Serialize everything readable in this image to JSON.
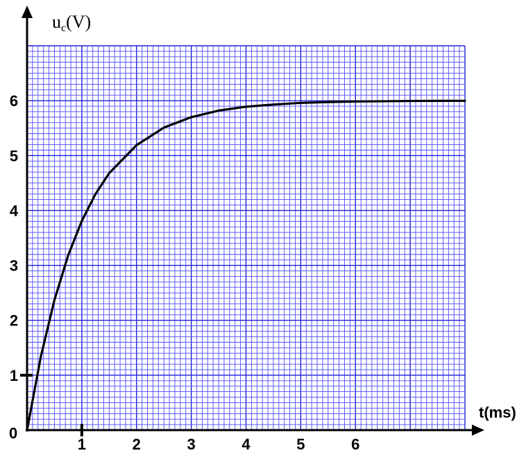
{
  "chart_data": {
    "type": "line",
    "xlabel": "t(ms)",
    "ylabel": {
      "main": "u",
      "sub": "c",
      "unit": "(V)"
    },
    "origin_label": "0",
    "xlim": [
      0,
      8
    ],
    "ylim": [
      0,
      7
    ],
    "x_ticks": [
      "1",
      "2",
      "3",
      "4",
      "5",
      "6"
    ],
    "y_ticks": [
      "1",
      "2",
      "3",
      "4",
      "5",
      "6"
    ],
    "grid": true,
    "colors": {
      "grid": "#1f1fd8",
      "minor_grid": "#4a4aff",
      "curve": "#000000",
      "background": "#ffffff"
    },
    "series": [
      {
        "x": [
          0,
          0.25,
          0.5,
          0.75,
          1,
          1.25,
          1.5,
          2,
          2.5,
          3,
          3.5,
          4,
          4.5,
          5,
          5.5,
          6,
          6.5,
          7,
          7.5,
          8
        ],
        "y": [
          0,
          1.33,
          2.37,
          3.18,
          3.81,
          4.3,
          4.68,
          5.19,
          5.51,
          5.7,
          5.82,
          5.89,
          5.93,
          5.96,
          5.975,
          5.985,
          5.99,
          5.995,
          5.997,
          5.998
        ]
      }
    ]
  }
}
